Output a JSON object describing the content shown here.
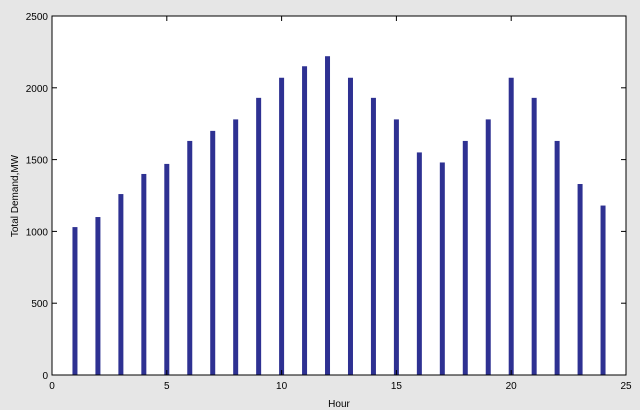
{
  "chart_data": {
    "type": "bar",
    "title": "",
    "xlabel": "Hour",
    "ylabel": "Total Demand,MW",
    "xlim": [
      0,
      25
    ],
    "ylim": [
      0,
      2500
    ],
    "x_ticks": [
      0,
      5,
      10,
      15,
      20,
      25
    ],
    "y_ticks": [
      0,
      500,
      1000,
      1500,
      2000,
      2500
    ],
    "grid": false,
    "legend": "none",
    "x": [
      1,
      2,
      3,
      4,
      5,
      6,
      7,
      8,
      9,
      10,
      11,
      12,
      13,
      14,
      15,
      16,
      17,
      18,
      19,
      20,
      21,
      22,
      23,
      24
    ],
    "series": [
      {
        "values": [
          1030,
          1100,
          1260,
          1400,
          1470,
          1630,
          1700,
          1780,
          1930,
          2070,
          2150,
          2220,
          2070,
          1930,
          1780,
          1550,
          1480,
          1630,
          1780,
          2070,
          1930,
          1630,
          1330,
          1180
        ],
        "color": "#2e3192"
      }
    ]
  }
}
